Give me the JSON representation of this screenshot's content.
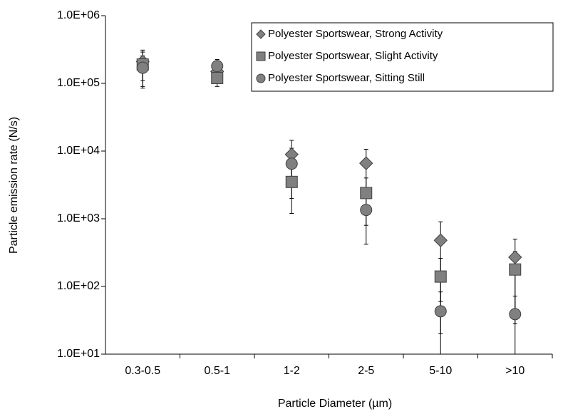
{
  "chart_data": {
    "type": "scatter",
    "x_label": "Particle Diameter (µm)",
    "y_label": "Particle emission rate (N/s)",
    "categories": [
      "0.3-0.5",
      "0.5-1",
      "1-2",
      "2-5",
      "5-10",
      ">10"
    ],
    "log_y": true,
    "ylim": [
      10,
      1000000
    ],
    "yticks": [
      {
        "value": 10,
        "label": "1.0E+01"
      },
      {
        "value": 100,
        "label": "1.0E+02"
      },
      {
        "value": 1000,
        "label": "1.0E+03"
      },
      {
        "value": 10000,
        "label": "1.0E+04"
      },
      {
        "value": 100000,
        "label": "1.0E+05"
      },
      {
        "value": 1000000,
        "label": "1.0E+06"
      }
    ],
    "legend": "top-right",
    "series": [
      {
        "name": "Polyester Sportswear, Strong Activity",
        "marker": "diamond",
        "color": "#808080",
        "values": [
          210000,
          150000,
          8900,
          6600,
          480,
          270
        ],
        "errors": [
          100000,
          50000,
          5500,
          4000,
          420,
          230
        ]
      },
      {
        "name": "Polyester Sportswear, Slight Activity",
        "marker": "square",
        "color": "#808080",
        "values": [
          190000,
          120000,
          3500,
          2400,
          140,
          178
        ],
        "errors": [
          100000,
          30000,
          2300,
          1600,
          120,
          150
        ]
      },
      {
        "name": "Polyester Sportswear, Sitting Still",
        "marker": "circle",
        "color": "#808080",
        "values": [
          170000,
          180000,
          6500,
          1350,
          43,
          39
        ],
        "errors": [
          85000,
          45000,
          4500,
          930,
          40,
          33
        ]
      }
    ]
  }
}
